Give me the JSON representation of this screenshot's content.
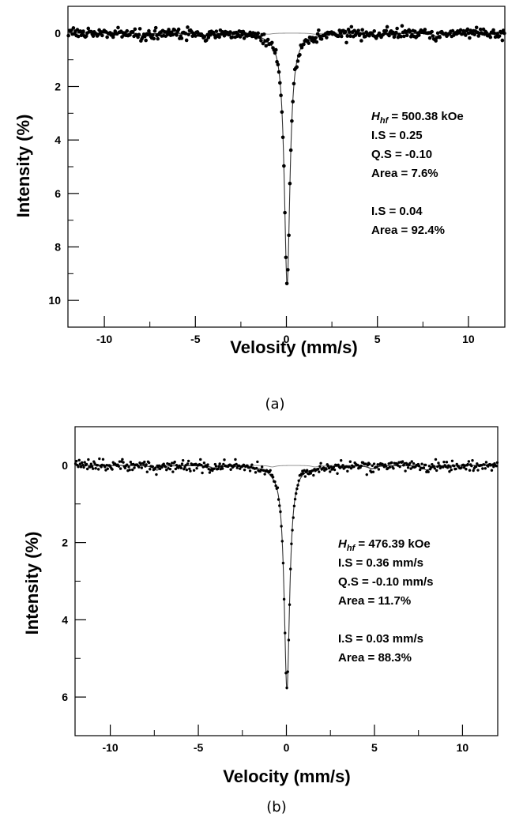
{
  "charts": [
    {
      "type": "scatter",
      "caption": "(a)",
      "xlabel": "Velosity (mm/s)",
      "ylabel": "Intensity (%)",
      "xlim": [
        -12,
        12
      ],
      "ylim": [
        11,
        -1
      ],
      "xticks": [
        -10,
        -5,
        0,
        5,
        10
      ],
      "yticks": [
        0,
        2,
        4,
        6,
        8,
        10
      ],
      "xtick_labels": [
        "-10",
        "-5",
        "0",
        "5",
        "10"
      ],
      "ytick_labels": [
        "0",
        "2",
        "4",
        "6",
        "8",
        "10"
      ],
      "grid": false,
      "annotations": [
        {
          "symbol": "H",
          "sub": "hf",
          "rest": " = 500.38 kOe"
        },
        {
          "text": "I.S = 0.25"
        },
        {
          "text": "Q.S = -0.10"
        },
        {
          "text": "Area = 7.6%"
        },
        {
          "text": ""
        },
        {
          "text": "I.S = 0.04"
        },
        {
          "text": "Area = 92.4%"
        }
      ],
      "series": [
        {
          "kind": "singlet",
          "center": 0.04,
          "depth": 9.4,
          "hwhm": 0.19
        },
        {
          "kind": "sextet",
          "hf_koe": 500.38,
          "isomer_shift": 0.25,
          "quad_split": -0.1,
          "depth": 0.12,
          "hwhm": 0.25
        },
        {
          "kind": "data",
          "noise": 0.1
        }
      ]
    },
    {
      "type": "scatter",
      "caption": "(b)",
      "xlabel": "Velocity (mm/s)",
      "ylabel": "Intensity (%)",
      "xlim": [
        -12,
        12
      ],
      "ylim": [
        7,
        -1
      ],
      "xticks": [
        -10,
        -5,
        0,
        5,
        10
      ],
      "yticks": [
        0,
        2,
        4,
        6
      ],
      "xtick_labels": [
        "-10",
        "-5",
        "0",
        "5",
        "10"
      ],
      "ytick_labels": [
        "0",
        "2",
        "4",
        "6"
      ],
      "grid": false,
      "annotations": [
        {
          "symbol": "H",
          "sub": "hf",
          "rest": " = 476.39 kOe"
        },
        {
          "text": "I.S = 0.36 mm/s"
        },
        {
          "text": "Q.S = -0.10 mm/s"
        },
        {
          "text": "Area = 11.7%"
        },
        {
          "text": ""
        },
        {
          "text": "I.S = 0.03 mm/s"
        },
        {
          "text": "Area = 88.3%"
        }
      ],
      "series": [
        {
          "kind": "singlet",
          "center": 0.03,
          "depth": 5.8,
          "hwhm": 0.19
        },
        {
          "kind": "sextet",
          "hf_koe": 476.39,
          "isomer_shift": 0.36,
          "quad_split": -0.1,
          "depth": 0.12,
          "hwhm": 0.25
        },
        {
          "kind": "data",
          "noise": 0.07
        }
      ]
    }
  ]
}
